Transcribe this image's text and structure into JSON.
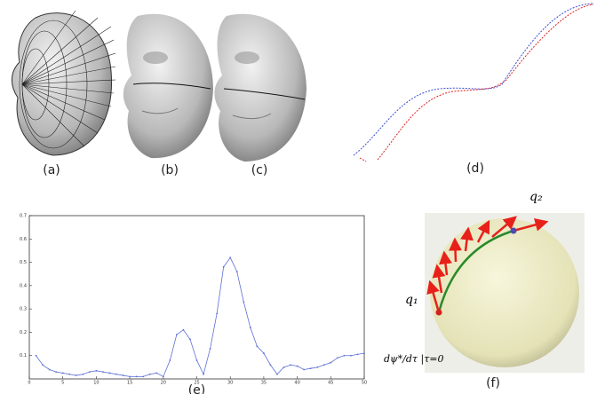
{
  "panel_labels": {
    "a": "(a)",
    "b": "(b)",
    "c": "(c)",
    "d": "(d)",
    "f": "(f)"
  },
  "chart_data": {
    "type": "line",
    "label": "(e)",
    "x": [
      1,
      2,
      3,
      4,
      5,
      6,
      7,
      8,
      9,
      10,
      11,
      12,
      13,
      14,
      15,
      16,
      17,
      18,
      19,
      20,
      21,
      22,
      23,
      24,
      25,
      26,
      27,
      28,
      29,
      30,
      31,
      32,
      33,
      34,
      35,
      36,
      37,
      38,
      39,
      40,
      41,
      42,
      43,
      44,
      45,
      46,
      47,
      48,
      49,
      50
    ],
    "values": [
      0.1,
      0.06,
      0.04,
      0.03,
      0.025,
      0.02,
      0.015,
      0.02,
      0.03,
      0.035,
      0.03,
      0.025,
      0.02,
      0.015,
      0.01,
      0.01,
      0.01,
      0.02,
      0.025,
      0.01,
      0.08,
      0.19,
      0.21,
      0.17,
      0.08,
      0.02,
      0.13,
      0.28,
      0.48,
      0.52,
      0.46,
      0.33,
      0.22,
      0.14,
      0.11,
      0.06,
      0.02,
      0.05,
      0.06,
      0.055,
      0.04,
      0.045,
      0.05,
      0.06,
      0.07,
      0.09,
      0.1,
      0.1,
      0.105,
      0.11
    ],
    "color": "#5b6fd6",
    "xlim": [
      0,
      50
    ],
    "xticks": [
      0,
      5,
      10,
      15,
      20,
      25,
      30,
      35,
      40,
      45,
      50
    ],
    "ylim": [
      0,
      0.7
    ],
    "yticks": [
      0.1,
      0.2,
      0.3,
      0.4,
      0.5,
      0.6,
      0.7
    ]
  },
  "sphere": {
    "q1": "q₁",
    "q2": "q₂",
    "formula": "dψ*/dτ |τ=0"
  }
}
